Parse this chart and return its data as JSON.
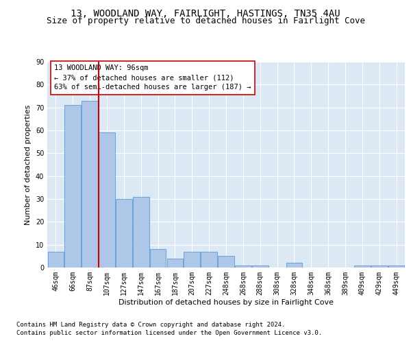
{
  "title": "13, WOODLAND WAY, FAIRLIGHT, HASTINGS, TN35 4AU",
  "subtitle": "Size of property relative to detached houses in Fairlight Cove",
  "xlabel": "Distribution of detached houses by size in Fairlight Cove",
  "ylabel": "Number of detached properties",
  "footnote1": "Contains HM Land Registry data © Crown copyright and database right 2024.",
  "footnote2": "Contains public sector information licensed under the Open Government Licence v3.0.",
  "annotation_line1": "13 WOODLAND WAY: 96sqm",
  "annotation_line2": "← 37% of detached houses are smaller (112)",
  "annotation_line3": "63% of semi-detached houses are larger (187) →",
  "bar_categories": [
    "46sqm",
    "66sqm",
    "87sqm",
    "107sqm",
    "127sqm",
    "147sqm",
    "167sqm",
    "187sqm",
    "207sqm",
    "227sqm",
    "248sqm",
    "268sqm",
    "288sqm",
    "308sqm",
    "328sqm",
    "348sqm",
    "368sqm",
    "389sqm",
    "409sqm",
    "429sqm",
    "449sqm"
  ],
  "bar_values": [
    7,
    71,
    73,
    59,
    30,
    31,
    8,
    4,
    7,
    7,
    5,
    1,
    1,
    0,
    2,
    0,
    0,
    0,
    1,
    1,
    1
  ],
  "bar_color": "#aec6e8",
  "bar_edge_color": "#5b9bd5",
  "vline_x": 2.5,
  "vline_color": "#cc0000",
  "background_color": "#dde8f5",
  "grid_color": "#ffffff",
  "ylim": [
    0,
    90
  ],
  "yticks": [
    0,
    10,
    20,
    30,
    40,
    50,
    60,
    70,
    80,
    90
  ],
  "title_fontsize": 10,
  "subtitle_fontsize": 9,
  "axis_label_fontsize": 8,
  "tick_fontsize": 7,
  "annotation_fontsize": 7.5,
  "footnote_fontsize": 6.5
}
